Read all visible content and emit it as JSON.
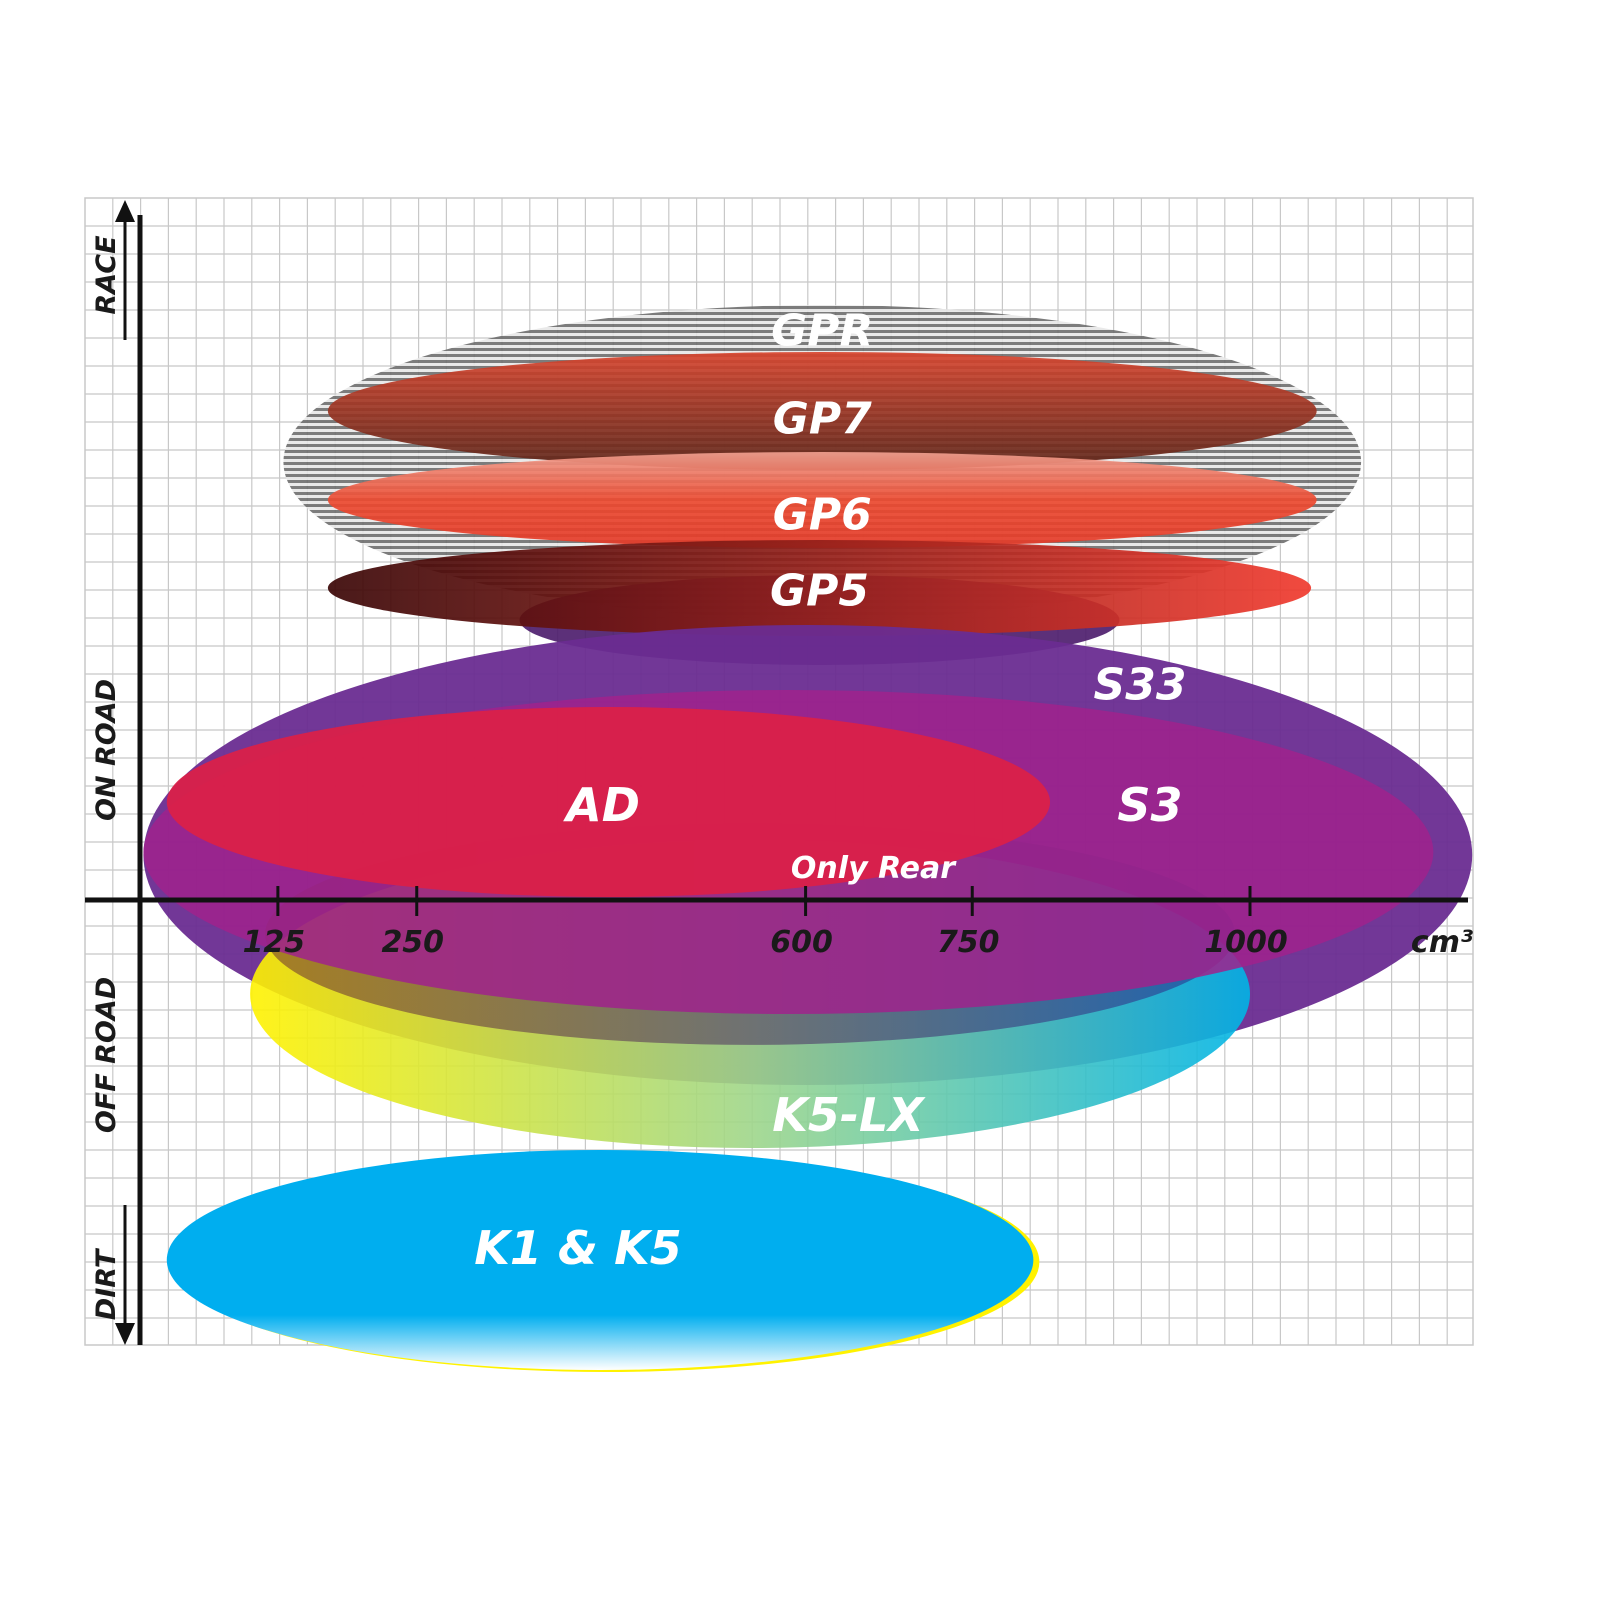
{
  "chart_data": {
    "type": "diagram",
    "xlabel": "cm³",
    "x_ticks": [
      "125",
      "250",
      "600",
      "750",
      "1000"
    ],
    "x_tick_values": [
      125,
      250,
      600,
      750,
      1000
    ],
    "y_labels": [
      "RACE",
      "ON ROAD",
      "OFF ROAD",
      "DIRT"
    ],
    "grid": true,
    "products": [
      {
        "name": "GPR",
        "cc_range": [
          130,
          1100
        ],
        "zone": "RACE",
        "color": "#9a9a9a"
      },
      {
        "name": "GP7",
        "cc_range": [
          170,
          1060
        ],
        "zone": "RACE",
        "color": "#8b2a1c"
      },
      {
        "name": "GP6",
        "cc_range": [
          170,
          1060
        ],
        "zone": "RACE",
        "color": "#e8432a"
      },
      {
        "name": "GP5",
        "cc_range": [
          170,
          1055
        ],
        "zone": "RACE / ON ROAD",
        "color": "#b02418"
      },
      {
        "name": "S33",
        "cc_range": [
          4,
          1200
        ],
        "zone": "ON ROAD",
        "color": "#6a2c91"
      },
      {
        "name": "S3",
        "cc_range": [
          4,
          1165
        ],
        "zone": "ON ROAD",
        "color": "#a0228c"
      },
      {
        "name": "AD",
        "cc_range": [
          25,
          820
        ],
        "zone": "ON ROAD",
        "color": "#dc1f46"
      },
      {
        "name": "K5-LX",
        "cc_range": [
          100,
          1000
        ],
        "zone": "OFF ROAD",
        "color": "#00b4e6",
        "note": "Only Rear"
      },
      {
        "name": "K1 & K5",
        "cc_range": [
          25,
          805
        ],
        "zone": "DIRT",
        "color": "#00aeef"
      }
    ]
  }
}
